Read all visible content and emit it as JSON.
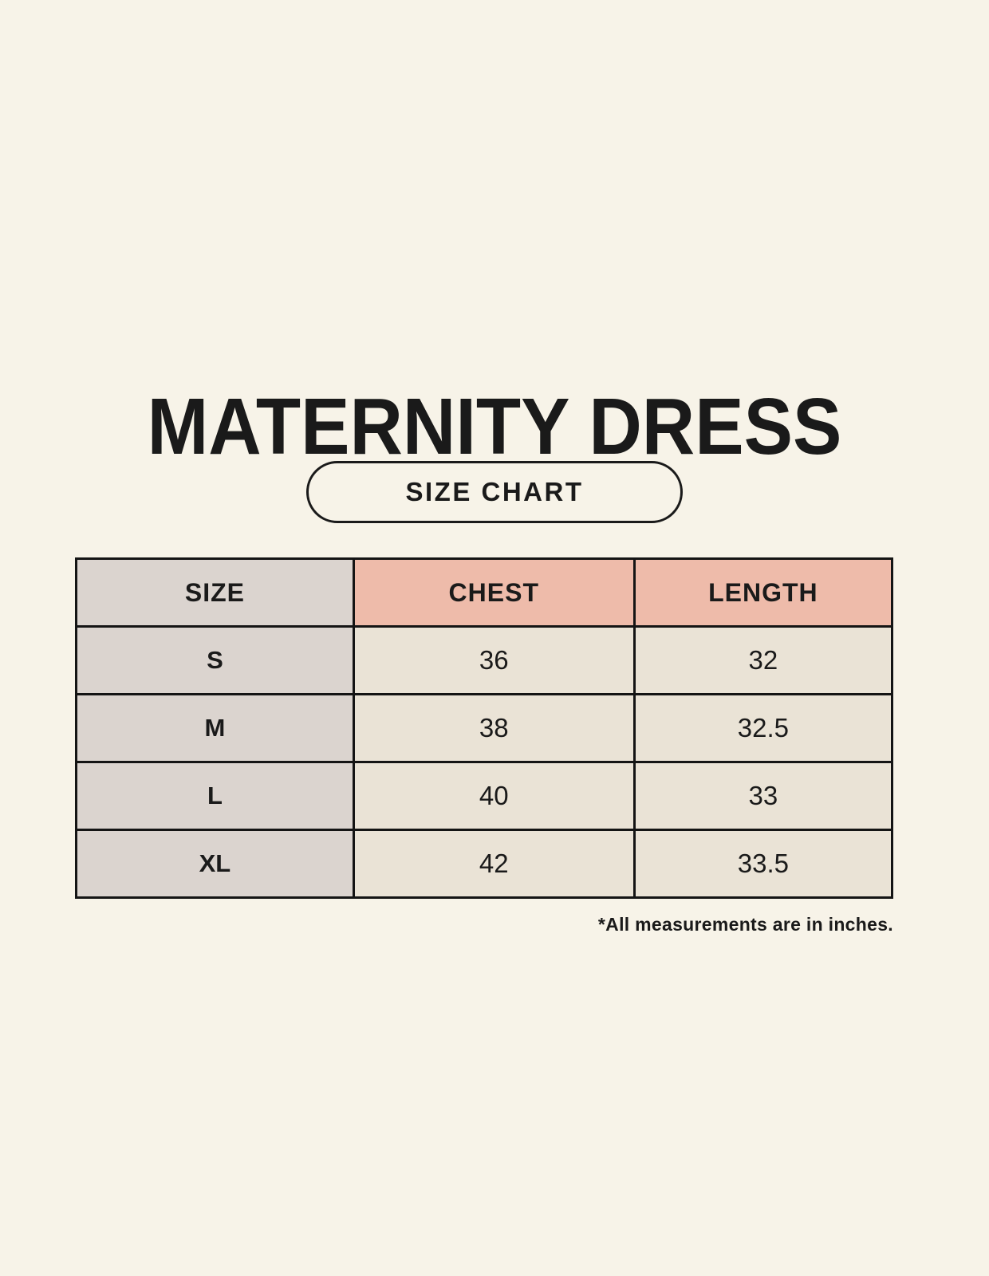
{
  "title": "MATERNITY DRESS",
  "badge_label": "SIZE CHART",
  "footnote": "*All measurements are in inches.",
  "table": {
    "headers": [
      "SIZE",
      "CHEST",
      "LENGTH"
    ],
    "rows": [
      [
        "S",
        "36",
        "32"
      ],
      [
        "M",
        "38",
        "32.5"
      ],
      [
        "L",
        "40",
        "33"
      ],
      [
        "XL",
        "42",
        "33.5"
      ]
    ]
  },
  "colors": {
    "background": "#F7F3E8",
    "text": "#1A1A1A",
    "border": "#141414",
    "header_pink": "#EEBBAA",
    "size_column_gray": "#DBD4CF",
    "cell_cream": "#EAE3D6"
  }
}
